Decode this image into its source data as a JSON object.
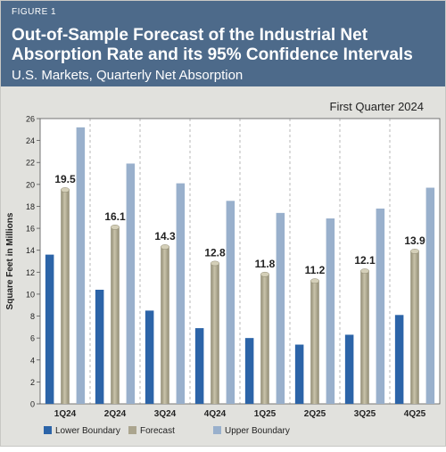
{
  "figure_label": "FIGURE 1",
  "title_line1": "Out-of-Sample Forecast of the Industrial Net",
  "title_line2": "Absorption Rate and its 95% Confidence Intervals",
  "subtitle": "U.S. Markets, Quarterly Net Absorption",
  "colors": {
    "header_bg": "#4d6a8a",
    "lower": "#2c64a8",
    "forecast": "#aba58e",
    "upper": "#99b0cc",
    "plot_bg": "#ffffff",
    "frame_bg": "#e1e1dd"
  },
  "chart_data": {
    "type": "bar",
    "annotation": "First Quarter 2024",
    "ylabel": "Square Feet in Millions",
    "xlabel": "",
    "ylim": [
      0,
      26
    ],
    "yticks": [
      0,
      2,
      4,
      6,
      8,
      10,
      12,
      14,
      16,
      18,
      20,
      22,
      24,
      26
    ],
    "grid": false,
    "legend_position": "bottom",
    "categories": [
      "1Q24",
      "2Q24",
      "3Q24",
      "4Q24",
      "1Q25",
      "2Q25",
      "3Q25",
      "4Q25"
    ],
    "series": [
      {
        "name": "Lower Boundary",
        "values": [
          13.6,
          10.4,
          8.5,
          6.9,
          6.0,
          5.4,
          6.3,
          8.1
        ]
      },
      {
        "name": "Forecast",
        "values": [
          19.5,
          16.1,
          14.3,
          12.8,
          11.8,
          11.2,
          12.1,
          13.9
        ]
      },
      {
        "name": "Upper Boundary",
        "values": [
          25.2,
          21.9,
          20.1,
          18.5,
          17.4,
          16.9,
          17.8,
          19.7
        ]
      }
    ],
    "data_labels": [
      "19.5",
      "16.1",
      "14.3",
      "12.8",
      "11.8",
      "11.2",
      "12.1",
      "13.9"
    ]
  }
}
